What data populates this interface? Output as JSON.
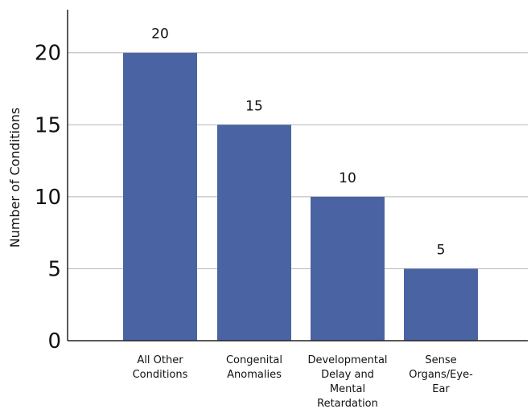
{
  "chart_data": {
    "type": "bar",
    "categories": [
      [
        "All Other",
        "Conditions"
      ],
      [
        "Congenital",
        "Anomalies"
      ],
      [
        "Developmental",
        "Delay and",
        "Mental",
        "Retardation"
      ],
      [
        "Sense",
        "Organs/Eye-",
        "Ear"
      ]
    ],
    "values": [
      20,
      15,
      10,
      5
    ],
    "data_labels": [
      "20",
      "15",
      "10",
      "5"
    ],
    "title": "",
    "xlabel": "",
    "ylabel": "Number of Conditions",
    "ylim": [
      0,
      23
    ],
    "yticks": [
      0,
      5,
      10,
      15,
      20
    ],
    "ytick_labels": [
      "0",
      "5",
      "10",
      "15",
      "20"
    ],
    "grid": true,
    "legend": "none",
    "colors": {
      "bar": "#4a63a3",
      "grid": "#b5b5b5",
      "axis": "#222222"
    }
  }
}
